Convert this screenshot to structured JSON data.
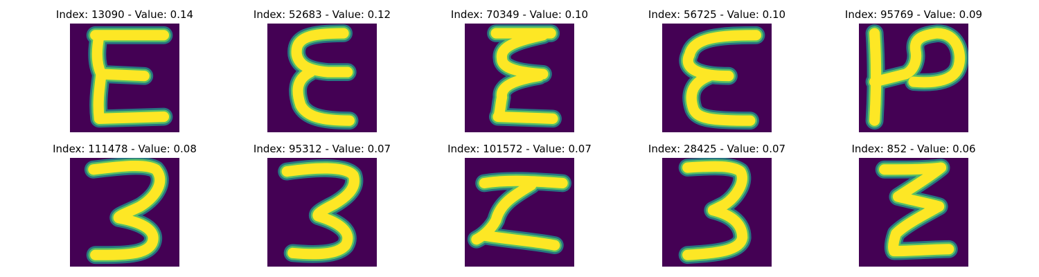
{
  "colors": {
    "background": "#440154",
    "stroke_outer": "#21918c",
    "stroke_mid": "#5ec962",
    "stroke_core": "#fde725"
  },
  "panels": [
    {
      "title": "Index: 13090 - Value: 0.14",
      "index": 13090,
      "value": 0.14,
      "glyph": "E"
    },
    {
      "title": "Index: 52683 - Value: 0.12",
      "index": 52683,
      "value": 0.12,
      "glyph": "E-curly"
    },
    {
      "title": "Index: 70349 - Value: 0.10",
      "index": 70349,
      "value": 0.1,
      "glyph": "E-zigzag"
    },
    {
      "title": "Index: 56725 - Value: 0.10",
      "index": 56725,
      "value": 0.1,
      "glyph": "E-round"
    },
    {
      "title": "Index: 95769 - Value: 0.09",
      "index": 95769,
      "value": 0.09,
      "glyph": "P-rotated"
    },
    {
      "title": "Index: 111478 - Value: 0.08",
      "index": 111478,
      "value": 0.08,
      "glyph": "3"
    },
    {
      "title": "Index: 95312 - Value: 0.07",
      "index": 95312,
      "value": 0.07,
      "glyph": "3-bold"
    },
    {
      "title": "Index: 101572 - Value: 0.07",
      "index": 101572,
      "value": 0.07,
      "glyph": "Z-block"
    },
    {
      "title": "Index: 28425 - Value: 0.07",
      "index": 28425,
      "value": 0.07,
      "glyph": "3-wide"
    },
    {
      "title": "Index: 852 - Value: 0.06",
      "index": 852,
      "value": 0.06,
      "glyph": "Z-zigzag"
    }
  ]
}
